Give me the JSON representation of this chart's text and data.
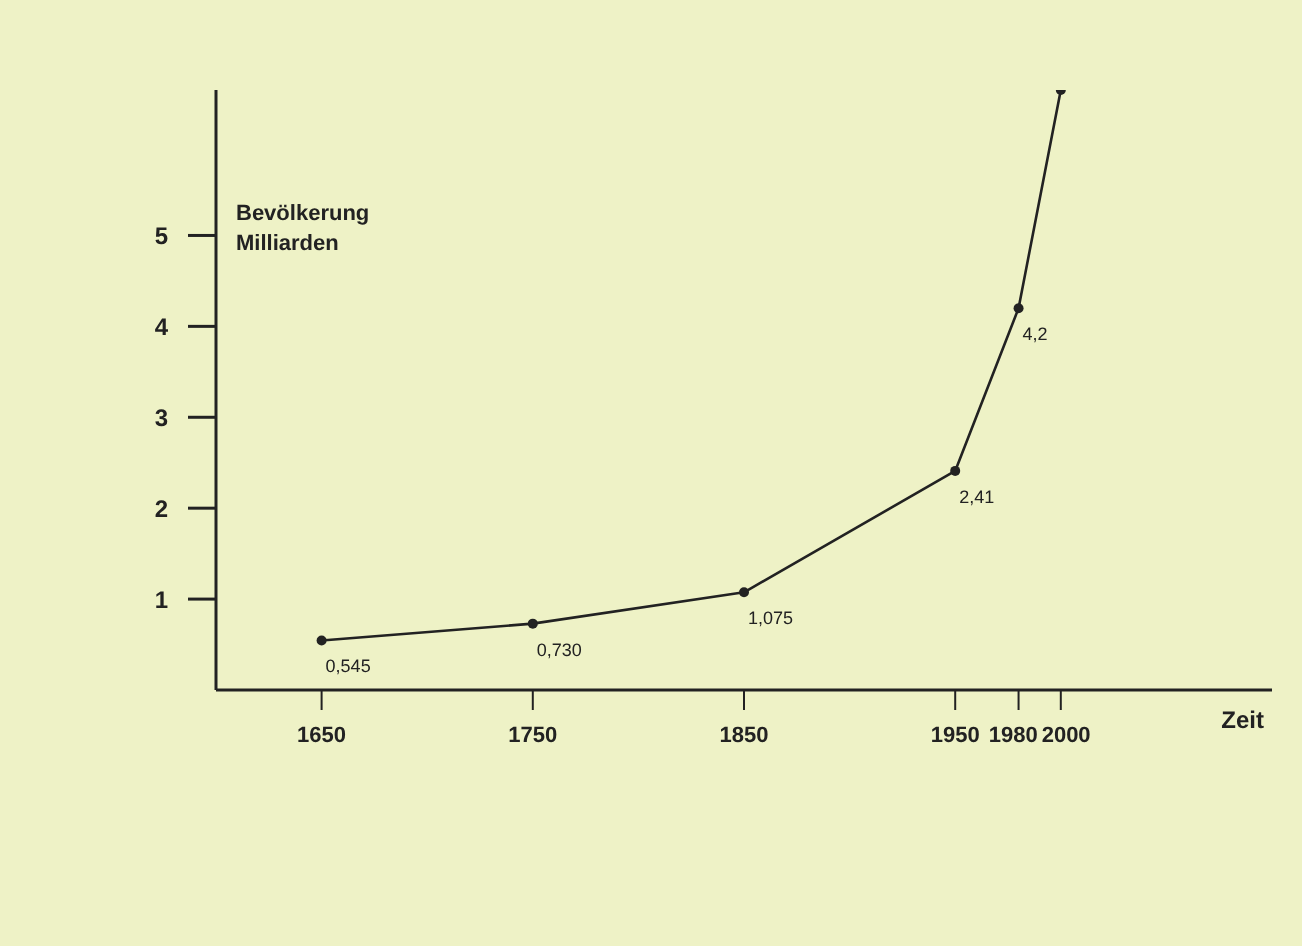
{
  "chart_data": {
    "type": "line",
    "xlabel": "Zeit",
    "ylabel": "Bevölkerung\nMilliarden",
    "x": [
      1650,
      1750,
      1850,
      1950,
      1980,
      2000
    ],
    "values": [
      0.545,
      0.73,
      1.075,
      2.41,
      4.2,
      6.6
    ],
    "value_labels": [
      "0,545",
      "0,730",
      "1,075",
      "2,41",
      "4,2",
      null
    ],
    "color": "#222222",
    "marker": "circle",
    "xlim": [
      1600,
      2100
    ],
    "xticks": [
      1650,
      1750,
      1850,
      1950,
      1980,
      2000
    ],
    "ylim": [
      0,
      6.6
    ],
    "yticks": [
      1,
      2,
      3,
      4,
      5
    ]
  }
}
